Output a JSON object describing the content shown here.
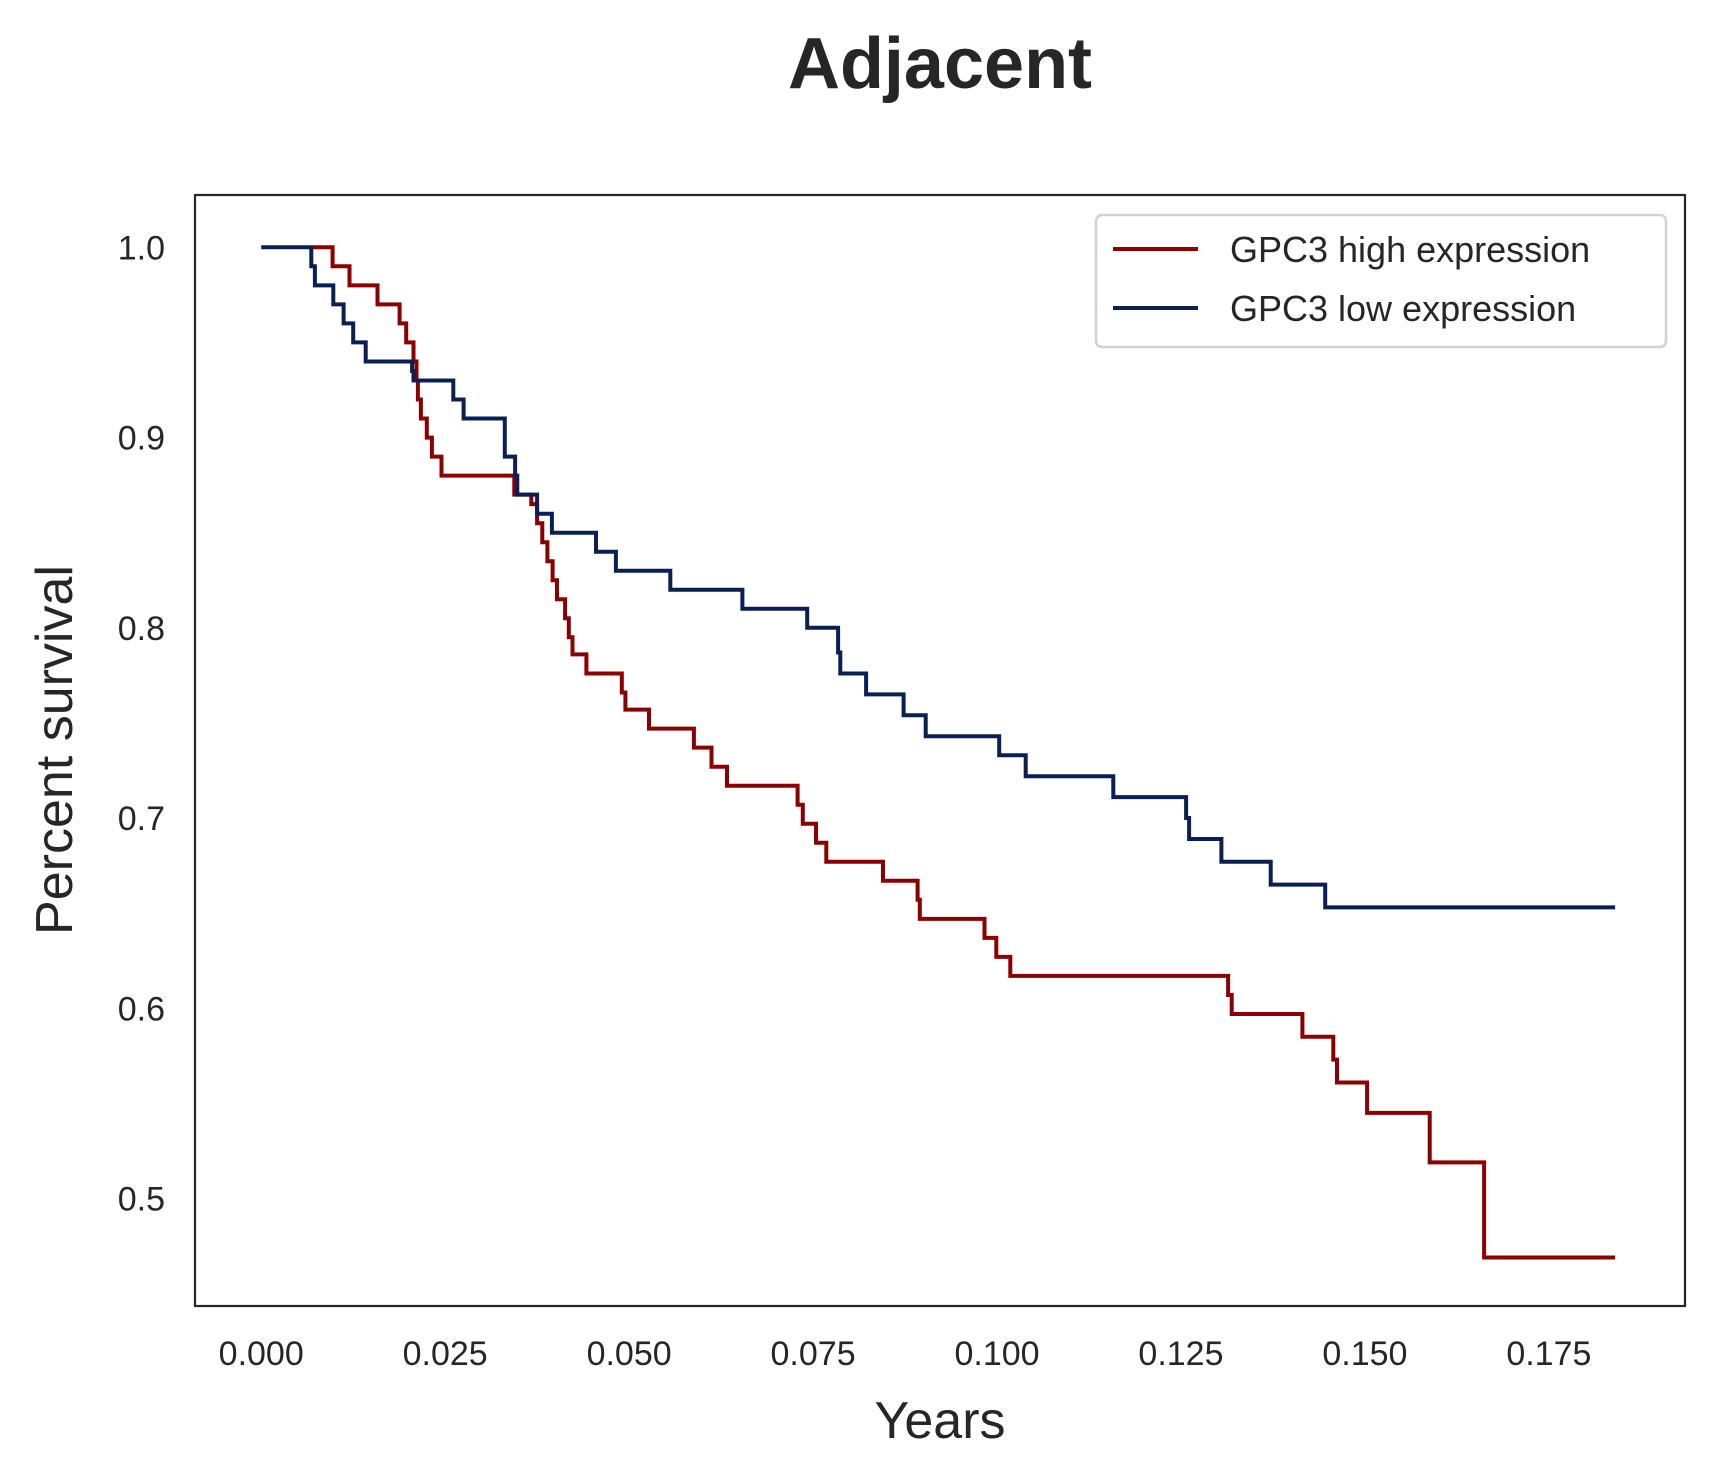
{
  "chart_data": {
    "type": "line",
    "step": true,
    "title": "Adjacent",
    "xlabel": "Years",
    "ylabel": "Percent survival",
    "xlim": [
      -0.009,
      0.1935
    ],
    "ylim": [
      0.4435,
      1.0275
    ],
    "xticks": [
      0,
      0.025,
      0.05,
      0.075,
      0.1,
      0.125,
      0.15,
      0.175
    ],
    "xtick_labels": [
      "0.000",
      "0.025",
      "0.050",
      "0.075",
      "0.100",
      "0.125",
      "0.150",
      "0.175"
    ],
    "yticks": [
      0.5,
      0.6,
      0.7,
      0.8,
      0.9,
      1.0
    ],
    "ytick_labels": [
      "0.5",
      "0.6",
      "0.7",
      "0.8",
      "0.9",
      "1.0"
    ],
    "grid": false,
    "legend_position": "top-right",
    "series": [
      {
        "name": "GPC3 high expression",
        "color": "#8b0000",
        "x": [
          0.007,
          0.0095,
          0.0097,
          0.012,
          0.0158,
          0.0188,
          0.0197,
          0.0207,
          0.0211,
          0.0213,
          0.0217,
          0.0225,
          0.0232,
          0.0245,
          0.0344,
          0.0367,
          0.0375,
          0.0382,
          0.0389,
          0.0396,
          0.0402,
          0.0413,
          0.0418,
          0.0423,
          0.0442,
          0.049,
          0.0495,
          0.0527,
          0.0588,
          0.0612,
          0.0633,
          0.0729,
          0.0736,
          0.0754,
          0.0768,
          0.0845,
          0.0892,
          0.0895,
          0.0983,
          0.0999,
          0.1018,
          0.1314,
          0.1319,
          0.1415,
          0.1457,
          0.1462,
          0.1503,
          0.1588,
          0.1662,
          0.184
        ],
        "y": [
          1.0,
          1.0,
          0.99,
          0.98,
          0.97,
          0.96,
          0.95,
          0.94,
          0.93,
          0.92,
          0.91,
          0.9,
          0.89,
          0.88,
          0.87,
          0.865,
          0.855,
          0.845,
          0.835,
          0.825,
          0.815,
          0.805,
          0.795,
          0.786,
          0.776,
          0.766,
          0.757,
          0.747,
          0.737,
          0.727,
          0.717,
          0.707,
          0.697,
          0.687,
          0.677,
          0.667,
          0.657,
          0.647,
          0.637,
          0.627,
          0.617,
          0.607,
          0.597,
          0.585,
          0.573,
          0.561,
          0.545,
          0.519,
          0.469,
          0.469
        ]
      },
      {
        "name": "GPC3 low expression",
        "color": "#0a2055",
        "x": [
          0,
          0.0063,
          0.0068,
          0.0073,
          0.0098,
          0.0112,
          0.0125,
          0.0142,
          0.0205,
          0.0207,
          0.0209,
          0.0261,
          0.0275,
          0.0331,
          0.0345,
          0.0348,
          0.0375,
          0.0395,
          0.0455,
          0.0482,
          0.0556,
          0.0654,
          0.0742,
          0.0784,
          0.0787,
          0.0822,
          0.0873,
          0.0903,
          0.1003,
          0.1039,
          0.1158,
          0.1257,
          0.1261,
          0.1273,
          0.1305,
          0.1372,
          0.1446,
          0.184
        ],
        "y": [
          1.0,
          1.0,
          0.99,
          0.98,
          0.97,
          0.96,
          0.95,
          0.94,
          0.935,
          0.93,
          0.93,
          0.92,
          0.91,
          0.89,
          0.88,
          0.87,
          0.86,
          0.85,
          0.84,
          0.83,
          0.82,
          0.81,
          0.8,
          0.787,
          0.776,
          0.765,
          0.754,
          0.743,
          0.733,
          0.722,
          0.711,
          0.7,
          0.689,
          0.689,
          0.677,
          0.665,
          0.653,
          0.653
        ]
      }
    ]
  }
}
